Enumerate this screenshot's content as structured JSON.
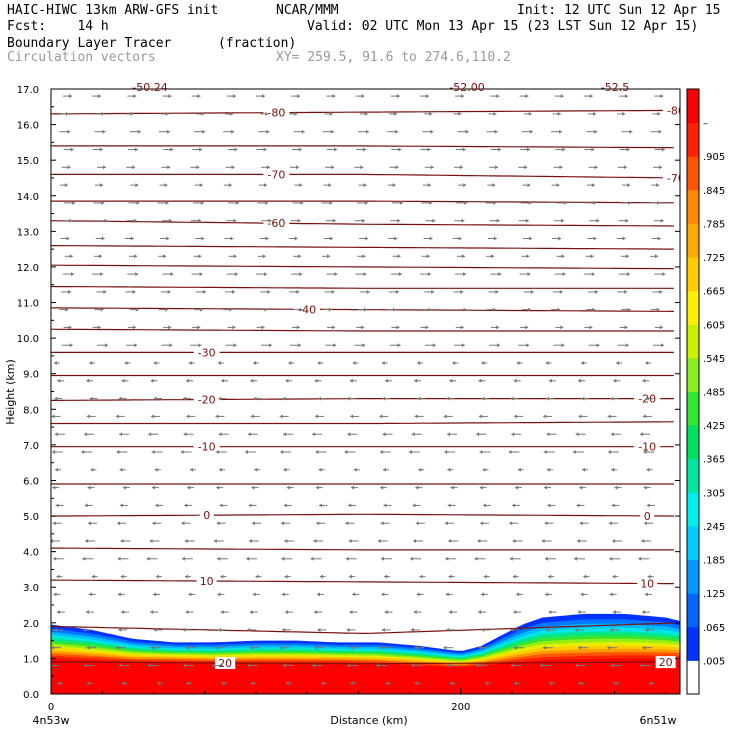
{
  "header": {
    "model": "HAIC-HIWC 13km ARW-GFS init",
    "org": "NCAR/MMM",
    "init": "Init: 12 UTC Sun 12 Apr 15",
    "fcst": "Fcst:    14 h",
    "valid": "Valid: 02 UTC Mon 13 Apr 15 (23 LST Sun 12 Apr 15)",
    "field": "Boundary Layer Tracer",
    "units": "(fraction)",
    "vectors": "Circulation vectors",
    "xy": "XY= 259.5, 91.6 to 274.6,110.2",
    "top_clip_labels": [
      "-50.24",
      "-52.00",
      "-52.5"
    ]
  },
  "chart_data": {
    "type": "heatmap",
    "title": "Boundary Layer Tracer",
    "units": "(fraction)",
    "xlabel": "Distance (km)",
    "ylabel": "Height (km)",
    "xlim": [
      0,
      307
    ],
    "ylim": [
      0.0,
      17.0
    ],
    "x_ticks": [
      0,
      200
    ],
    "x_tick_labels": [
      "0",
      "200"
    ],
    "x_end_labels": [
      "4n53w",
      "6n51w"
    ],
    "y_ticks": [
      0.0,
      1.0,
      2.0,
      3.0,
      4.0,
      5.0,
      6.0,
      7.0,
      8.0,
      9.0,
      10.0,
      11.0,
      12.0,
      13.0,
      14.0,
      15.0,
      16.0,
      17.0
    ],
    "y_tick_labels": [
      "0.0",
      "1.0",
      "2.0",
      "3.0",
      "4.0",
      "5.0",
      "6.0",
      "7.0",
      "8.0",
      "9.0",
      "10.0",
      "11.0",
      "12.0",
      "13.0",
      "14.0",
      "15.0",
      "16.0",
      "17.0"
    ],
    "colorbar": {
      "labels": [
        ".005",
        ".065",
        ".125",
        ".185",
        ".245",
        ".305",
        ".365",
        ".425",
        ".485",
        ".545",
        ".605",
        ".665",
        ".725",
        ".785",
        ".845",
        ".905",
        "–"
      ],
      "colors": [
        "#ffffff",
        "#0033ff",
        "#0066ff",
        "#0099ff",
        "#00ccff",
        "#00eeee",
        "#00e6a0",
        "#00e060",
        "#33e633",
        "#88ee22",
        "#ccee00",
        "#ffee00",
        "#ffcc00",
        "#ffaa00",
        "#ff8800",
        "#ff5500",
        "#ff2200",
        "#ff0000"
      ]
    },
    "tracer_profile": {
      "x_km": [
        0,
        20,
        40,
        60,
        80,
        100,
        120,
        140,
        160,
        180,
        200,
        210,
        220,
        230,
        240,
        260,
        280,
        300,
        307
      ],
      "top_km": [
        1.95,
        1.8,
        1.55,
        1.45,
        1.45,
        1.5,
        1.5,
        1.45,
        1.45,
        1.35,
        1.2,
        1.35,
        1.65,
        1.95,
        2.15,
        2.25,
        2.25,
        2.15,
        2.05
      ],
      "red_km": [
        1.0,
        0.95,
        0.9,
        0.9,
        0.88,
        0.88,
        0.88,
        0.88,
        0.85,
        0.8,
        0.75,
        0.8,
        0.85,
        0.9,
        0.95,
        0.98,
        1.0,
        1.0,
        1.0
      ]
    },
    "temperature_contours": [
      {
        "value": -80,
        "label": "-80",
        "y_km": [
          16.3,
          16.35,
          16.4
        ],
        "label_x_km": [
          110,
          305
        ]
      },
      {
        "value": -75,
        "label": "",
        "y_km": [
          15.4,
          15.4,
          15.35
        ],
        "label_x_km": []
      },
      {
        "value": -70,
        "label": "-70",
        "y_km": [
          14.6,
          14.6,
          14.5
        ],
        "label_x_km": [
          110,
          305
        ]
      },
      {
        "value": -65,
        "label": "",
        "y_km": [
          13.85,
          13.85,
          13.8
        ],
        "label_x_km": []
      },
      {
        "value": -60,
        "label": "-60",
        "y_km": [
          13.3,
          13.2,
          13.15
        ],
        "label_x_km": [
          110
        ]
      },
      {
        "value": -55,
        "label": "",
        "y_km": [
          12.6,
          12.55,
          12.5
        ],
        "label_x_km": []
      },
      {
        "value": -50,
        "label": "",
        "y_km": [
          12.05,
          12.0,
          11.95
        ],
        "label_x_km": []
      },
      {
        "value": -45,
        "label": "",
        "y_km": [
          11.45,
          11.4,
          11.4
        ],
        "label_x_km": []
      },
      {
        "value": -40,
        "label": "-40",
        "y_km": [
          10.85,
          10.8,
          10.75
        ],
        "label_x_km": [
          125
        ]
      },
      {
        "value": -35,
        "label": "",
        "y_km": [
          10.25,
          10.2,
          10.2
        ],
        "label_x_km": []
      },
      {
        "value": -30,
        "label": "-30",
        "y_km": [
          9.6,
          9.6,
          9.6
        ],
        "label_x_km": [
          76
        ]
      },
      {
        "value": -25,
        "label": "",
        "y_km": [
          8.95,
          8.95,
          8.95
        ],
        "label_x_km": []
      },
      {
        "value": -20,
        "label": "-20",
        "y_km": [
          8.25,
          8.3,
          8.3
        ],
        "label_x_km": [
          76,
          291
        ]
      },
      {
        "value": -15,
        "label": "",
        "y_km": [
          7.6,
          7.6,
          7.65
        ],
        "label_x_km": []
      },
      {
        "value": -10,
        "label": "-10",
        "y_km": [
          6.95,
          6.95,
          6.95
        ],
        "label_x_km": [
          76,
          291
        ]
      },
      {
        "value": -5,
        "label": "",
        "y_km": [
          5.9,
          5.9,
          5.9
        ],
        "label_x_km": []
      },
      {
        "value": 0,
        "label": "0",
        "y_km": [
          5.0,
          5.05,
          5.0
        ],
        "label_x_km": [
          76,
          291
        ]
      },
      {
        "value": 5,
        "label": "",
        "y_km": [
          4.1,
          4.05,
          4.05
        ],
        "label_x_km": []
      },
      {
        "value": 10,
        "label": "10",
        "y_km": [
          3.2,
          3.15,
          3.1
        ],
        "label_x_km": [
          76,
          291
        ]
      },
      {
        "value": 15,
        "label": "",
        "y_km": [
          1.9,
          1.7,
          2.0
        ],
        "label_x_km": []
      },
      {
        "value": 20,
        "label": "20",
        "y_km": [
          0.9,
          0.85,
          0.9
        ],
        "label_x_km": [
          85,
          300
        ]
      }
    ],
    "wind_note": "westerly (rightward) above ~9.5 km, easterly (leftward) below"
  },
  "colors": {
    "contour": "#7a1010",
    "vector": "#777777",
    "tracer_max": "#ff0000"
  }
}
